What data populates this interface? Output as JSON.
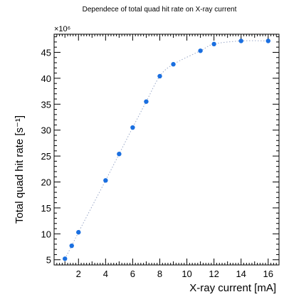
{
  "chart_data": {
    "type": "scatter",
    "title": "Dependece of total quad hit rate on X-ray current",
    "xlabel": "X-ray current [mA]",
    "ylabel": "Total quad hit rate [s⁻¹]",
    "y_multiplier": "×10⁶",
    "xlim": [
      0.2,
      16.8
    ],
    "ylim": [
      4,
      48.5
    ],
    "x_ticks": [
      "2",
      "4",
      "6",
      "8",
      "10",
      "12",
      "14",
      "16"
    ],
    "y_ticks": [
      "5",
      "10",
      "15",
      "20",
      "25",
      "30",
      "35",
      "40",
      "45"
    ],
    "grid": false,
    "fit_line": "dotted",
    "colors": {
      "points": "#1a6fe0",
      "fit": "#9aa8c8",
      "axes": "#000000"
    },
    "series": [
      {
        "x": [
          1,
          1.5,
          2,
          4,
          5,
          6,
          7,
          8,
          9,
          11,
          12,
          14,
          16
        ],
        "y": [
          5.2,
          7.7,
          10.3,
          20.3,
          25.4,
          30.5,
          35.5,
          40.4,
          42.7,
          45.3,
          46.6,
          47.2,
          47.2
        ]
      }
    ]
  }
}
